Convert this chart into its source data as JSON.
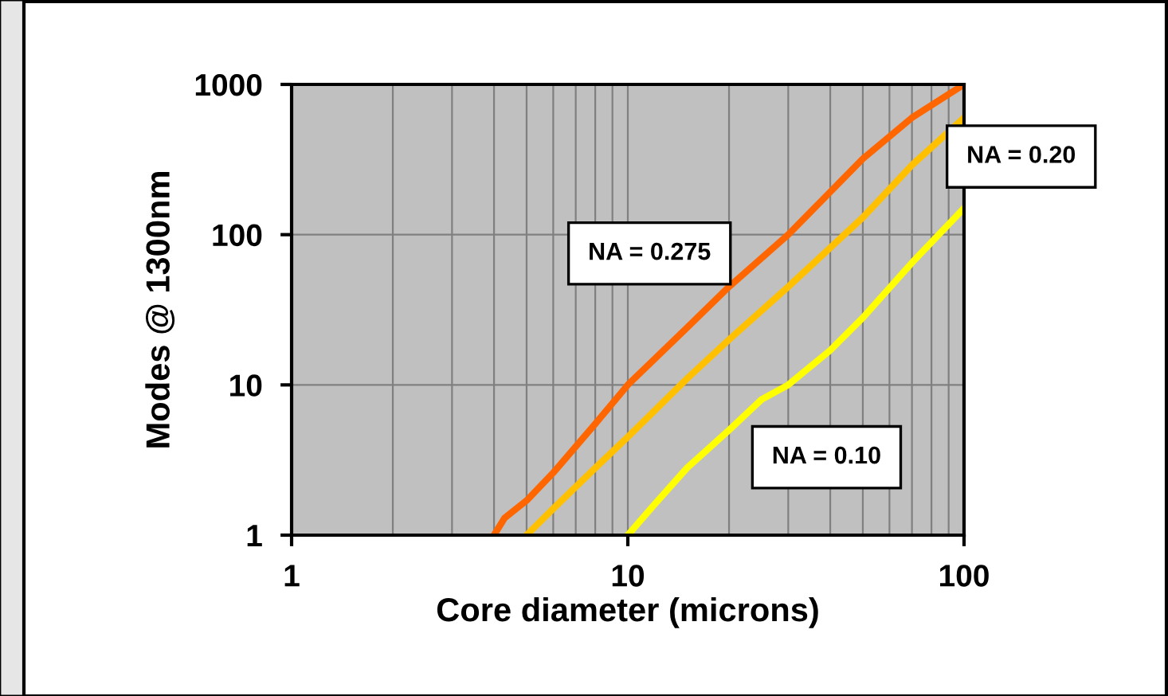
{
  "chart_data": {
    "type": "line",
    "xlabel": "Core diameter (microns)",
    "ylabel": "Modes @ 1300nm",
    "log": "xy",
    "xlim": [
      1,
      100
    ],
    "ylim": [
      1,
      1000
    ],
    "xticks": [
      1,
      10,
      100
    ],
    "yticks": [
      1,
      10,
      100,
      1000
    ],
    "grid": true,
    "marker": "none",
    "line_style": "solid",
    "series": [
      {
        "name": "NA = 0.275",
        "color": "#ff6600",
        "x": [
          4,
          4.3,
          5,
          6,
          8,
          10,
          15,
          20,
          30,
          50,
          70,
          100
        ],
        "values": [
          1,
          1.3,
          1.7,
          2.6,
          5.5,
          10,
          24,
          45,
          100,
          320,
          600,
          1000
        ]
      },
      {
        "name": "NA = 0.20",
        "color": "#ffc000",
        "x": [
          5,
          6,
          8,
          10,
          15,
          20,
          30,
          50,
          70,
          100
        ],
        "values": [
          1,
          1.5,
          2.8,
          4.5,
          11,
          20,
          45,
          130,
          290,
          600
        ]
      },
      {
        "name": "NA = 0.10",
        "color": "#ffff00",
        "x": [
          10,
          12,
          15,
          20,
          25,
          30,
          40,
          50,
          70,
          100
        ],
        "values": [
          1,
          1.6,
          2.8,
          5,
          8,
          10,
          17,
          28,
          65,
          150
        ]
      }
    ]
  }
}
